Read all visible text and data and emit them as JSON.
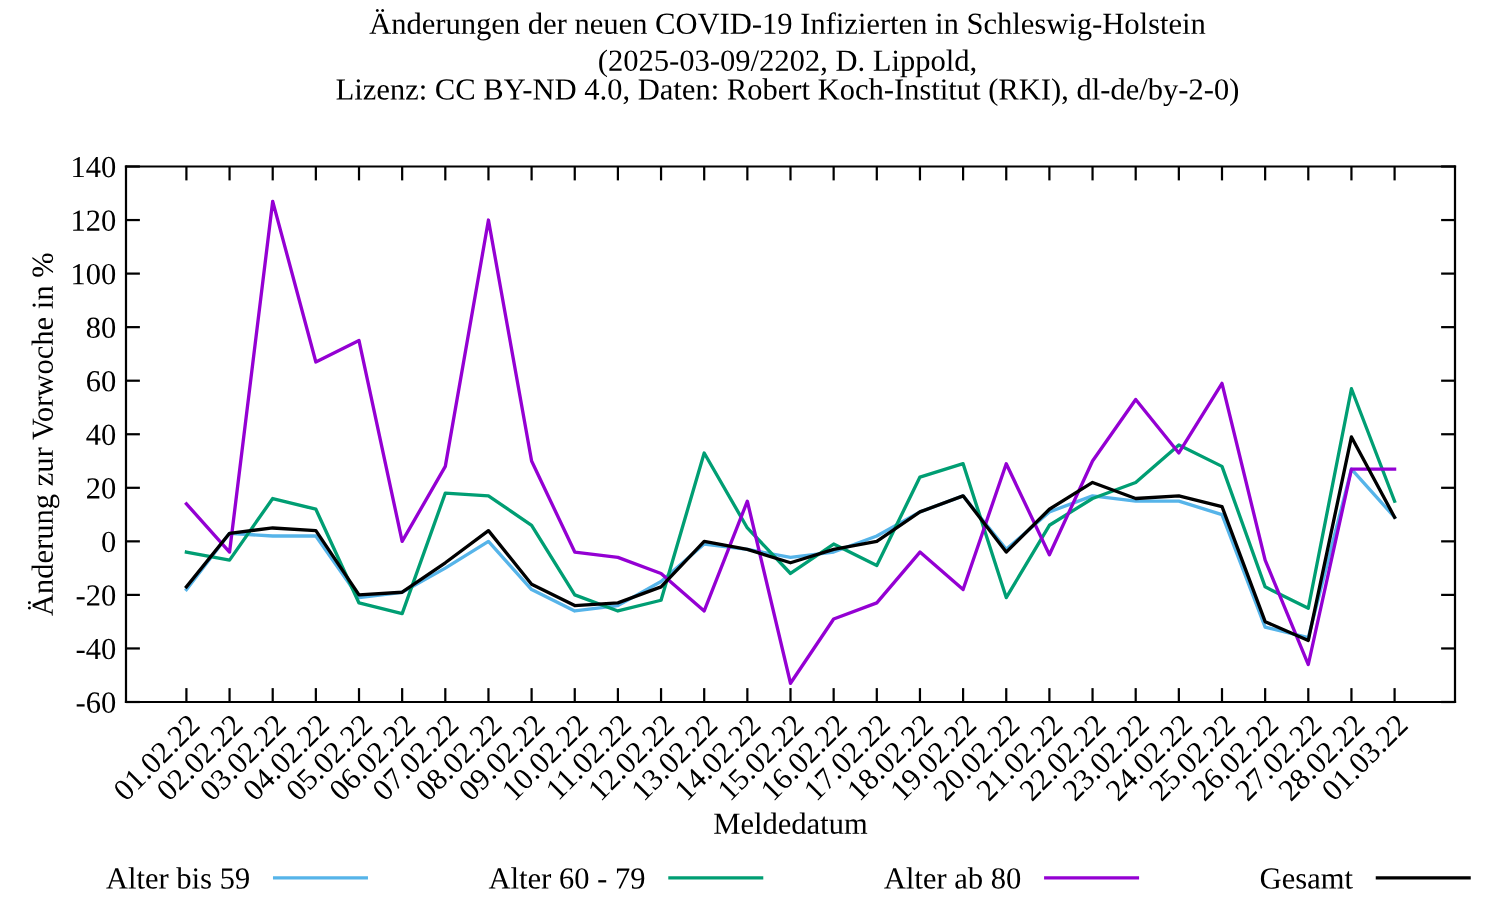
{
  "chart_data": {
    "type": "line",
    "title": "Änderungen der neuen COVID-19 Infizierten in Schleswig-Holstein",
    "subtitle": "(2025-03-09/2202, D. Lippold,\nLizenz: CC BY-ND 4.0, Daten: Robert Koch-Institut (RKI), dl-de/by-2-0)",
    "xlabel": "Meldedatum",
    "ylabel": "Änderung zur Vorwoche in %",
    "categories": [
      "01.02.22",
      "02.02.22",
      "03.02.22",
      "04.02.22",
      "05.02.22",
      "06.02.22",
      "07.02.22",
      "08.02.22",
      "09.02.22",
      "10.02.22",
      "11.02.22",
      "12.02.22",
      "13.02.22",
      "14.02.22",
      "15.02.22",
      "16.02.22",
      "17.02.22",
      "18.02.22",
      "19.02.22",
      "20.02.22",
      "21.02.22",
      "22.02.22",
      "23.02.22",
      "24.02.22",
      "25.02.22",
      "26.02.22",
      "27.02.22",
      "28.02.22",
      "01.03.22"
    ],
    "series": [
      {
        "name": "Alter bis 59",
        "color": "#56b4e9",
        "values": [
          -18,
          3,
          2,
          2,
          -21,
          -19,
          -10,
          0,
          -18,
          -26,
          -24,
          -15,
          -1,
          -3,
          -6,
          -4,
          2,
          11,
          17,
          -3,
          11,
          17,
          15,
          15,
          10,
          -32,
          -36,
          27,
          9
        ]
      },
      {
        "name": "Alter 60 - 79",
        "color": "#009e73",
        "values": [
          -4,
          -7,
          16,
          12,
          -23,
          -27,
          18,
          17,
          6,
          -20,
          -26,
          -22,
          33,
          5,
          -12,
          -1,
          -9,
          24,
          29,
          -21,
          6,
          16,
          22,
          36,
          28,
          -17,
          -25,
          57,
          15
        ]
      },
      {
        "name": "Alter ab 80",
        "color": "#9400d3",
        "values": [
          14,
          -4,
          127,
          67,
          75,
          0,
          28,
          120,
          30,
          -4,
          -6,
          -12,
          -26,
          15,
          -53,
          -29,
          -23,
          -4,
          -18,
          29,
          -5,
          30,
          53,
          33,
          59,
          -7,
          -46,
          27,
          27
        ]
      },
      {
        "name": "Gesamt",
        "color": "#000000",
        "values": [
          -17,
          3,
          5,
          4,
          -20,
          -19,
          -8,
          4,
          -16,
          -24,
          -23,
          -17,
          0,
          -3,
          -8,
          -3,
          0,
          11,
          17,
          -4,
          12,
          22,
          16,
          17,
          13,
          -30,
          -37,
          39,
          9
        ]
      }
    ],
    "ylim": [
      -60,
      140
    ],
    "yticks": [
      -60,
      -40,
      -20,
      0,
      20,
      40,
      60,
      80,
      100,
      120,
      140
    ],
    "grid": false,
    "legend": "bottom",
    "marker": "none",
    "line_style": "solid"
  }
}
